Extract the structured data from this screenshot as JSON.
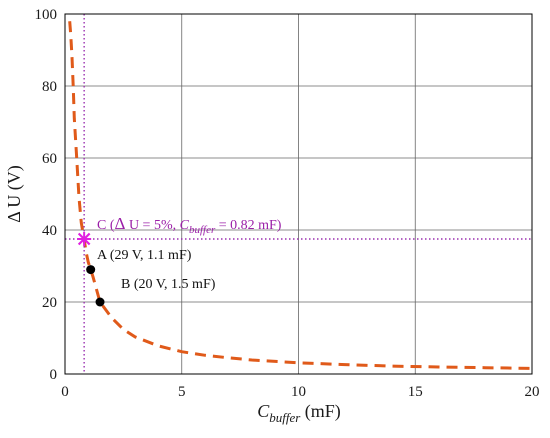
{
  "chart_data": {
    "type": "line",
    "xlabel": {
      "main": "C",
      "sub": "buffer",
      "unit": " (mF)"
    },
    "ylabel": "Δ U (V)",
    "xlim": [
      0,
      20
    ],
    "ylim": [
      0,
      100
    ],
    "xticks": [
      "0",
      "5",
      "10",
      "15",
      "20"
    ],
    "yticks": [
      "0",
      "20",
      "40",
      "60",
      "80",
      "100"
    ],
    "grid": true,
    "curve": {
      "style": "dashed",
      "color": "#e05a1a",
      "x": [
        0.2,
        0.25,
        0.3,
        0.35,
        0.4,
        0.5,
        0.6,
        0.7,
        0.82,
        0.9,
        1.0,
        1.1,
        1.2,
        1.5,
        2,
        2.5,
        3,
        4,
        5,
        6,
        7,
        8,
        10,
        12,
        14,
        16,
        18,
        20
      ],
      "y": [
        98,
        94,
        88,
        80,
        71,
        60,
        49,
        42,
        37.5,
        34,
        31,
        29,
        27,
        20,
        15.6,
        12.4,
        10.3,
        7.8,
        6.2,
        5.2,
        4.5,
        3.9,
        3.1,
        2.6,
        2.2,
        1.95,
        1.75,
        1.55
      ]
    },
    "points": [
      {
        "name": "A",
        "x": 1.1,
        "y": 29,
        "label": "A (29 V, 1.1 mF)",
        "marker": "circle",
        "color": "#000000"
      },
      {
        "name": "B",
        "x": 1.5,
        "y": 20,
        "label": "B (20 V, 1.5 mF)",
        "marker": "circle",
        "color": "#000000"
      },
      {
        "name": "C",
        "x": 0.82,
        "y": 37.5,
        "marker": "star",
        "color": "#e020e0"
      }
    ],
    "reference_lines": {
      "x": 0.82,
      "y": 37.5,
      "color": "#9b30b0",
      "style": "dotted"
    },
    "annotation_c": {
      "lead": "C (",
      "delta": "Δ",
      "mid": "  U = 5%, ",
      "c_main": "C",
      "c_sub": "buffer",
      "tail": " = 0.82 mF)",
      "color": "#9b1fa8"
    }
  }
}
